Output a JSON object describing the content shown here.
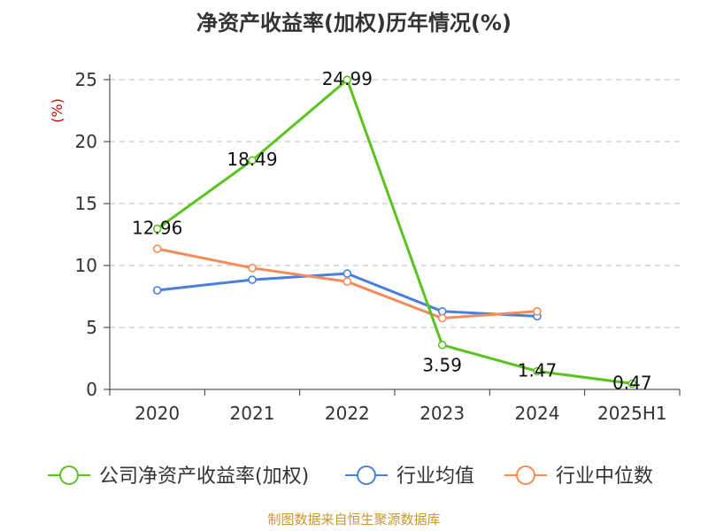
{
  "chart_data": {
    "type": "line",
    "title": "净资产收益率(加权)历年情况(%)",
    "ylabel": "(%)",
    "categories": [
      "2020",
      "2021",
      "2022",
      "2023",
      "2024",
      "2025H1"
    ],
    "ylim": [
      0,
      25
    ],
    "yticks": [
      0,
      5,
      10,
      15,
      20,
      25
    ],
    "grid": true,
    "legend_position": "bottom",
    "series": [
      {
        "name": "公司净资产收益率(加权)",
        "color": "#5bc31f",
        "values": [
          12.96,
          18.49,
          24.99,
          3.59,
          1.47,
          0.47
        ],
        "labels": [
          "12.96",
          "18.49",
          "24.99",
          "3.59",
          "1.47",
          "0.47"
        ]
      },
      {
        "name": "行业均值",
        "color": "#4a7fdc",
        "values": [
          8.0,
          8.85,
          9.35,
          6.3,
          5.9,
          null
        ]
      },
      {
        "name": "行业中位数",
        "color": "#f58b57",
        "values": [
          11.35,
          9.8,
          8.7,
          5.75,
          6.3,
          null
        ]
      }
    ]
  },
  "footer": {
    "source": "制图数据来自恒生聚源数据库"
  }
}
